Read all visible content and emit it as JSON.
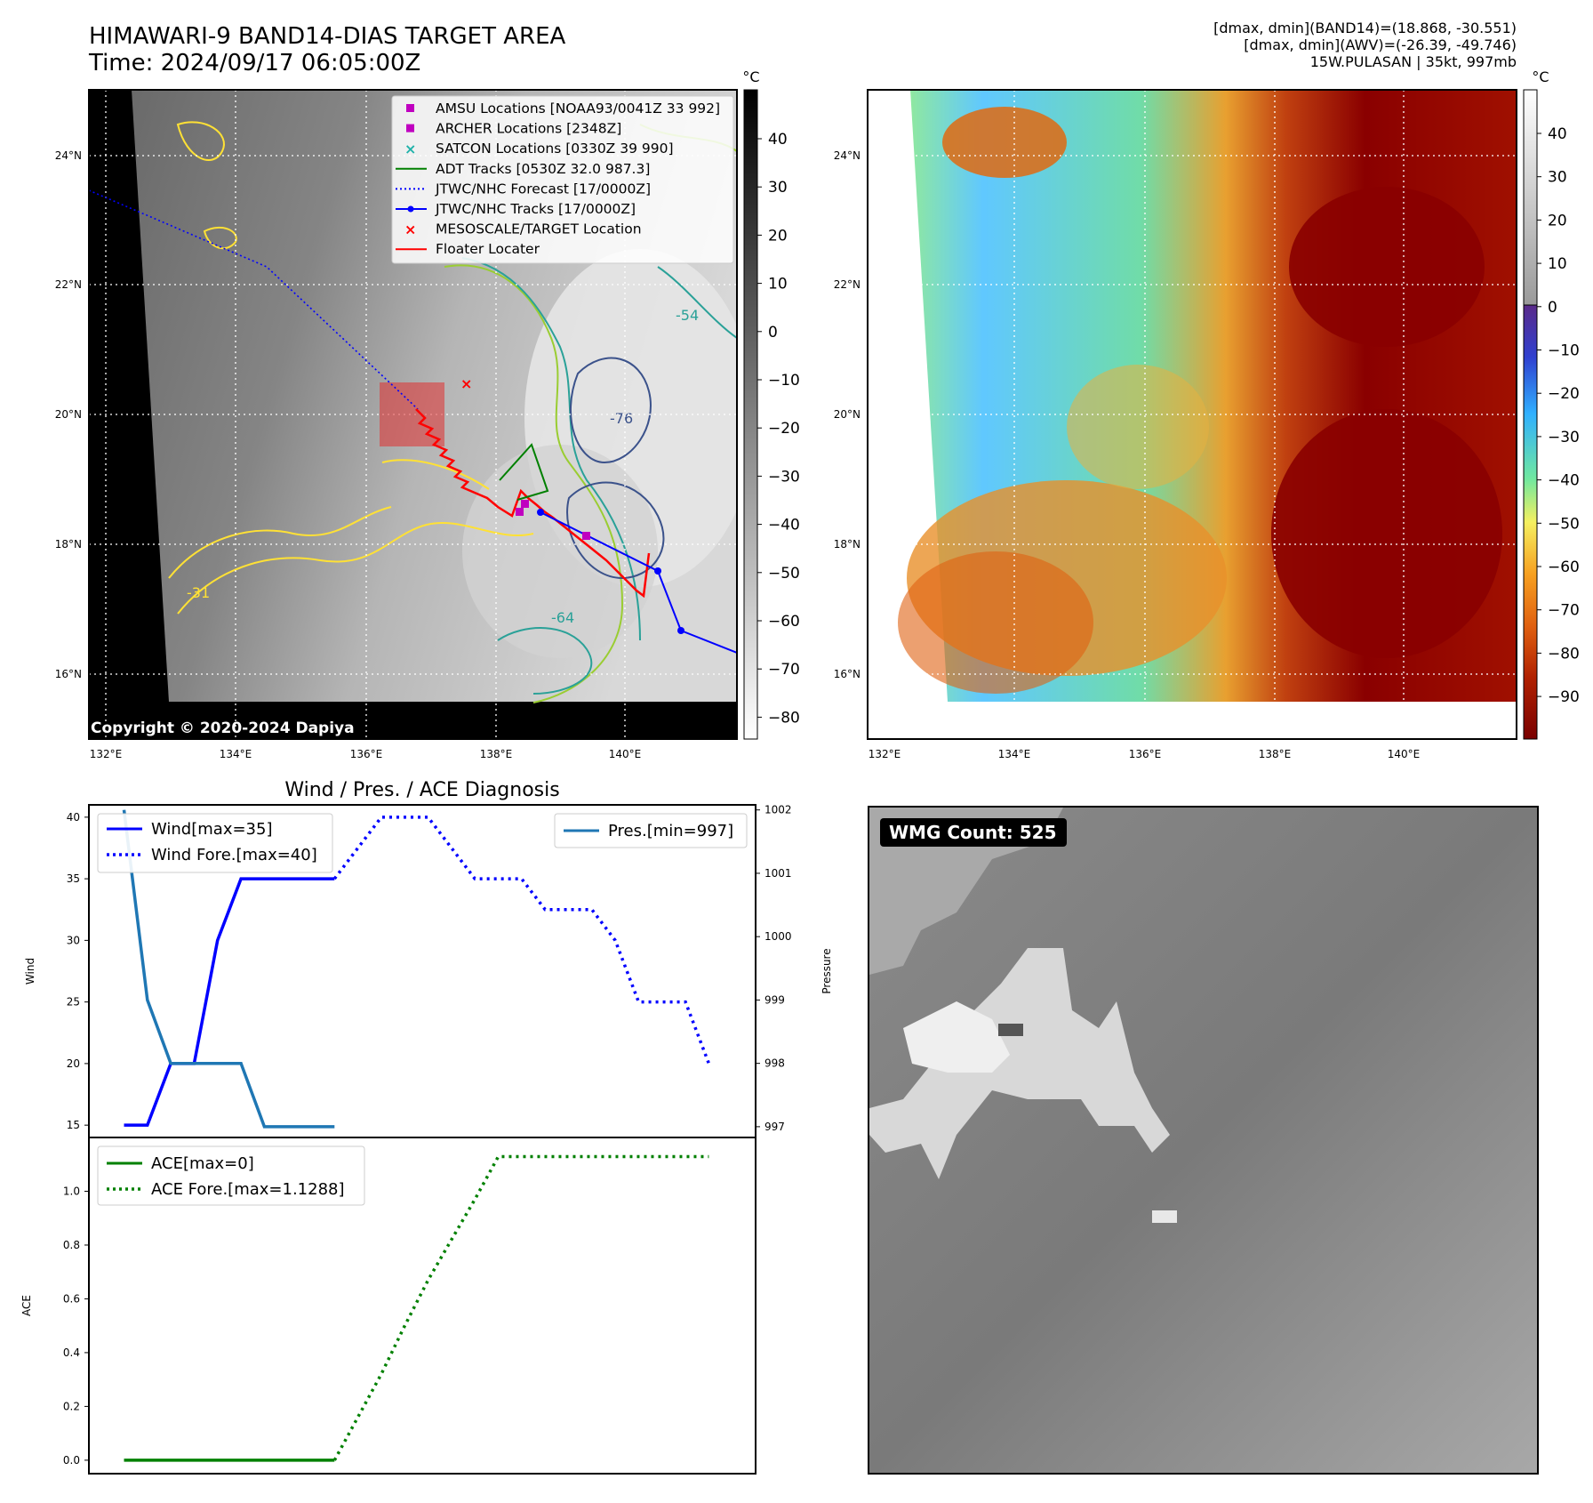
{
  "header": {
    "title_line1": "HIMAWARI-9 BAND14-DIAS TARGET AREA",
    "title_line2": "Time: 2024/09/17 06:05:00Z",
    "info_line1": "[dmax, dmin](BAND14)=(18.868, -30.551)",
    "info_line2": "[dmax, dmin](AWV)=(-26.39, -49.746)",
    "info_line3": "15W.PULASAN | 35kt, 997mb"
  },
  "ir_map": {
    "unit": "°C",
    "colorbar_ticks": [
      "40",
      "30",
      "20",
      "10",
      "0",
      "−10",
      "−20",
      "−30",
      "−40",
      "−50",
      "−60",
      "−70",
      "−80"
    ],
    "lon_labels": [
      "132°E",
      "134°E",
      "136°E",
      "138°E",
      "140°E"
    ],
    "lat_labels": [
      "24°N",
      "22°N",
      "20°N",
      "18°N",
      "16°N"
    ],
    "copyright": "Copyright © 2020-2024 Dapiya",
    "contour_labels": [
      "-54",
      "-76",
      "-64",
      "-31"
    ],
    "legend": [
      {
        "label": "AMSU Locations [NOAA93/0041Z 33 992]",
        "color": "#c000c0",
        "marker": "square"
      },
      {
        "label": "ARCHER Locations [2348Z]",
        "color": "#c000c0",
        "marker": "square"
      },
      {
        "label": "SATCON Locations [0330Z 39 990]",
        "color": "#20b2aa",
        "marker": "x"
      },
      {
        "label": "ADT Tracks [0530Z 32.0 987.3]",
        "color": "#008000",
        "marker": "line"
      },
      {
        "label": "JTWC/NHC Forecast [17/0000Z]",
        "color": "#0000ff",
        "marker": "dotted"
      },
      {
        "label": "JTWC/NHC Tracks [17/0000Z]",
        "color": "#0000ff",
        "marker": "line-dot"
      },
      {
        "label": "MESOSCALE/TARGET Location",
        "color": "#ff0000",
        "marker": "x"
      },
      {
        "label": "Floater Locater",
        "color": "#ff0000",
        "marker": "line"
      }
    ]
  },
  "awv_map": {
    "unit": "°C",
    "colorbar_ticks": [
      "40",
      "30",
      "20",
      "10",
      "0",
      "−10",
      "−20",
      "−30",
      "−40",
      "−50",
      "−60",
      "−70",
      "−80",
      "−90"
    ],
    "lon_labels": [
      "132°E",
      "134°E",
      "136°E",
      "138°E",
      "140°E"
    ],
    "lat_labels": [
      "24°N",
      "22°N",
      "20°N",
      "18°N",
      "16°N"
    ]
  },
  "wmg": {
    "label": "WMG Count: 525"
  },
  "chart_data": [
    {
      "type": "line",
      "title": "Wind / Pres. / ACE Diagnosis",
      "ylabel": "Wind",
      "y2label": "Pressure",
      "ylim": [
        14,
        41
      ],
      "y2lim": [
        996.83,
        1002.08
      ],
      "yticks": [
        "15",
        "20",
        "25",
        "30",
        "35",
        "40"
      ],
      "y2ticks": [
        "997",
        "998",
        "999",
        "1000",
        "1001",
        "1002"
      ],
      "x": [
        0,
        1,
        2,
        3,
        4,
        5,
        6,
        7,
        8,
        9,
        10,
        11,
        12,
        13,
        14,
        15,
        16,
        17,
        18,
        19,
        20,
        21,
        22,
        23,
        24,
        25
      ],
      "series": [
        {
          "name": "Wind[max=35]",
          "axis": "left",
          "color": "#0000ff",
          "style": "solid",
          "x": [
            0,
            1,
            2,
            3,
            4,
            5,
            6,
            7,
            8,
            9
          ],
          "values": [
            15,
            15,
            20,
            20,
            30,
            35,
            35,
            35,
            35,
            35
          ]
        },
        {
          "name": "Wind Fore.[max=40]",
          "axis": "left",
          "color": "#0000ff",
          "style": "dotted",
          "x": [
            9,
            10,
            11,
            12,
            13,
            14,
            15,
            16,
            17,
            18,
            19,
            20,
            21,
            22,
            23,
            24,
            25
          ],
          "values": [
            35,
            37.5,
            40,
            40,
            40,
            37.5,
            35,
            35,
            35,
            32.5,
            32.5,
            32.5,
            30,
            25,
            25,
            25,
            20
          ]
        },
        {
          "name": "Pres.[min=997]",
          "axis": "right",
          "color": "#1f77b4",
          "style": "solid",
          "x": [
            0,
            1,
            2,
            3,
            4,
            5,
            6,
            7,
            8,
            9
          ],
          "values": [
            1002,
            999,
            998,
            998,
            998,
            998,
            997,
            997,
            997,
            997
          ]
        }
      ],
      "legend_left": "top-left",
      "legend_right": "top-right"
    },
    {
      "type": "line",
      "ylabel": "ACE",
      "ylim": [
        -0.05,
        1.2
      ],
      "yticks": [
        "0.0",
        "0.2",
        "0.4",
        "0.6",
        "0.8",
        "1.0"
      ],
      "x": [
        0,
        1,
        2,
        3,
        4,
        5,
        6,
        7,
        8,
        9,
        10,
        11,
        12,
        13,
        14,
        15,
        16,
        17,
        18,
        19,
        20,
        21,
        22,
        23,
        24,
        25
      ],
      "series": [
        {
          "name": "ACE[max=0]",
          "color": "#008000",
          "style": "solid",
          "x": [
            0,
            9
          ],
          "values": [
            0,
            0
          ]
        },
        {
          "name": "ACE Fore.[max=1.1288]",
          "color": "#008000",
          "style": "dotted",
          "x": [
            9,
            10,
            11,
            12,
            13,
            14,
            15,
            16,
            17,
            18,
            19,
            20,
            21,
            22,
            23,
            24,
            25
          ],
          "values": [
            0,
            0.16,
            0.32,
            0.5,
            0.67,
            0.82,
            0.97,
            1.1288,
            1.1288,
            1.1288,
            1.1288,
            1.1288,
            1.1288,
            1.1288,
            1.1288,
            1.1288,
            1.1288
          ]
        }
      ],
      "legend": "top-left"
    }
  ]
}
